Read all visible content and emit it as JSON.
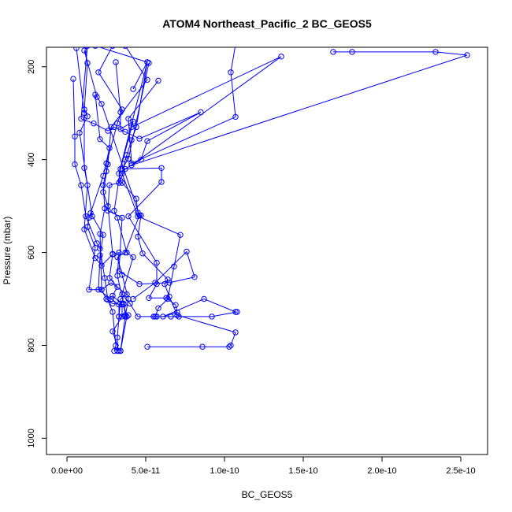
{
  "chart_data": {
    "type": "line",
    "title": "ATOM4 Northeast_Pacific_2 BC_GEOS5",
    "xlabel": "BC_GEOS5",
    "ylabel": "Pressure (mbar)",
    "xlim": [
      -1.3e-11,
      2.67e-10
    ],
    "ylim": [
      1035,
      158
    ],
    "y_reversed": true,
    "grid": false,
    "legend": "none",
    "series_color": "#0000ff",
    "markers": "open-circle",
    "x_ticks": [
      0,
      5e-11,
      1e-10,
      1.5e-10,
      2e-10,
      2.5e-10
    ],
    "x_tick_labels": [
      "0.0e+00",
      "5.0e-11",
      "1.0e-10",
      "1.5e-10",
      "2.0e-10",
      "2.5e-10"
    ],
    "y_ticks": [
      200,
      400,
      600,
      800,
      1000
    ],
    "y_tick_labels": [
      "200",
      "400",
      "600",
      "800",
      "1000"
    ],
    "series": [
      {
        "points": [
          [
            1.1e-11,
            152
          ],
          [
            1.3e-11,
            192
          ],
          [
            1.1e-11,
            292
          ],
          [
            1.3e-11,
            307
          ],
          [
            8e-12,
            342
          ],
          [
            1.6e-11,
            522
          ],
          [
            1.5e-11,
            515
          ],
          [
            2.3e-11,
            562
          ],
          [
            2.1e-11,
            606
          ],
          [
            2e-11,
            680
          ],
          [
            2.8e-11,
            700
          ],
          [
            3.3e-11,
            712
          ],
          [
            3.3e-11,
            738
          ],
          [
            3.2e-11,
            783
          ],
          [
            3.2e-11,
            812
          ]
        ]
      },
      {
        "points": [
          [
            4e-12,
            226
          ],
          [
            5e-12,
            350
          ],
          [
            5e-12,
            410
          ],
          [
            9e-12,
            455
          ],
          [
            1.2e-11,
            522
          ],
          [
            1.9e-11,
            580
          ],
          [
            2.1e-11,
            592
          ],
          [
            2.4e-11,
            655
          ],
          [
            2.6e-11,
            702
          ],
          [
            2.9e-11,
            728
          ],
          [
            3.1e-11,
            800
          ],
          [
            3e-11,
            812
          ]
        ]
      },
      {
        "points": [
          [
            2.9e-11,
            155
          ],
          [
            2e-11,
            212
          ],
          [
            3.5e-11,
            292
          ],
          [
            3.2e-11,
            322
          ],
          [
            2.5e-11,
            408
          ],
          [
            2.5e-11,
            425
          ],
          [
            2.3e-11,
            455
          ],
          [
            2.4e-11,
            505
          ],
          [
            2.1e-11,
            560
          ],
          [
            2.2e-11,
            680
          ],
          [
            2.5e-11,
            700
          ],
          [
            2.9e-11,
            710
          ],
          [
            3.6e-11,
            712
          ],
          [
            3.8e-11,
            738
          ],
          [
            3.4e-11,
            812
          ]
        ]
      },
      {
        "points": [
          [
            3.1e-11,
            190
          ],
          [
            3.4e-11,
            298
          ],
          [
            3.4e-11,
            334
          ],
          [
            4.2e-11,
            318
          ],
          [
            3.4e-11,
            420
          ],
          [
            3e-11,
            510
          ],
          [
            3.2e-11,
            525
          ],
          [
            3.8e-11,
            600
          ],
          [
            4.2e-11,
            610
          ],
          [
            3.5e-11,
            690
          ],
          [
            4e-11,
            710
          ],
          [
            4.5e-11,
            738
          ],
          [
            5.5e-11,
            738
          ],
          [
            5.7e-11,
            738
          ],
          [
            6.6e-11,
            738
          ],
          [
            7.1e-11,
            738
          ],
          [
            9.2e-11,
            738
          ],
          [
            1.08e-10,
            728
          ]
        ]
      },
      {
        "points": [
          [
            4.2e-11,
            248
          ],
          [
            5.1e-11,
            190
          ],
          [
            3.3e-11,
            430
          ],
          [
            3.4e-11,
            445
          ],
          [
            3.5e-11,
            450
          ],
          [
            4.4e-11,
            484
          ],
          [
            4.5e-11,
            514
          ],
          [
            4.7e-11,
            520
          ],
          [
            4.5e-11,
            566
          ],
          [
            4.8e-11,
            602
          ],
          [
            6.4e-11,
            658
          ],
          [
            6.2e-11,
            668
          ],
          [
            6.5e-11,
            695
          ],
          [
            7e-11,
            735
          ],
          [
            1.07e-10,
            772
          ],
          [
            1.04e-10,
            800
          ],
          [
            1.03e-10,
            803
          ],
          [
            8.6e-11,
            803
          ],
          [
            5.1e-11,
            803
          ]
        ]
      },
      {
        "points": [
          [
            5.2e-11,
            192
          ],
          [
            3.9e-11,
            398
          ],
          [
            3.5e-11,
            420
          ],
          [
            6e-11,
            418
          ],
          [
            6e-11,
            448
          ],
          [
            3.9e-11,
            522
          ],
          [
            5.7e-11,
            622
          ],
          [
            5.7e-11,
            668
          ],
          [
            5.2e-11,
            698
          ],
          [
            6.3e-11,
            698
          ],
          [
            6.9e-11,
            713
          ],
          [
            7e-11,
            729
          ],
          [
            6.1e-11,
            738
          ],
          [
            8.7e-11,
            700
          ],
          [
            1.07e-10,
            728
          ]
        ]
      },
      {
        "points": [
          [
            1.8e-11,
            155
          ],
          [
            5.1e-11,
            190
          ],
          [
            4.4e-11,
            330
          ],
          [
            4.1e-11,
            358
          ],
          [
            3.8e-11,
            390
          ],
          [
            3.7e-11,
            400
          ],
          [
            3.5e-11,
            430
          ],
          [
            4.5e-11,
            522
          ],
          [
            7.2e-11,
            562
          ],
          [
            6.8e-11,
            630
          ],
          [
            6.4e-11,
            700
          ],
          [
            5.8e-11,
            720
          ],
          [
            5.6e-11,
            738
          ]
        ]
      },
      {
        "points": [
          [
            1.3e-11,
            155
          ],
          [
            9e-12,
            312
          ],
          [
            1.7e-11,
            322
          ],
          [
            2.6e-11,
            338
          ],
          [
            3e-11,
            330
          ],
          [
            3.7e-11,
            340
          ],
          [
            4.6e-11,
            355
          ],
          [
            8.5e-11,
            298
          ],
          [
            5.1e-11,
            360
          ],
          [
            4.7e-11,
            400
          ],
          [
            3.7e-11,
            420
          ],
          [
            3.3e-11,
            450
          ],
          [
            2.7e-11,
            455
          ],
          [
            2.6e-11,
            510
          ],
          [
            3.5e-11,
            525
          ],
          [
            3.3e-11,
            640
          ],
          [
            4.6e-11,
            668
          ],
          [
            6.5e-11,
            665
          ],
          [
            8.1e-11,
            653
          ],
          [
            7.6e-11,
            598
          ],
          [
            5.6e-11,
            665
          ],
          [
            4.2e-11,
            700
          ]
        ]
      },
      {
        "points": [
          [
            5.8e-11,
            230
          ],
          [
            3.9e-11,
            312
          ],
          [
            4.1e-11,
            408
          ],
          [
            1.07e-10,
            308
          ],
          [
            1.04e-10,
            212
          ],
          [
            1.07e-10,
            152
          ]
        ]
      },
      {
        "points": [
          [
            1.8e-11,
            260
          ],
          [
            2.1e-11,
            356
          ],
          [
            2.7e-11,
            375
          ],
          [
            2.3e-11,
            435
          ],
          [
            1.4e-11,
            525
          ],
          [
            1.3e-11,
            545
          ],
          [
            1.8e-11,
            590
          ],
          [
            1.4e-11,
            680
          ],
          [
            2.2e-11,
            680
          ],
          [
            2.8e-11,
            665
          ],
          [
            3.8e-11,
            690
          ],
          [
            3.4e-11,
            700
          ],
          [
            3.3e-11,
            738
          ]
        ]
      },
      {
        "points": [
          [
            1.1e-11,
            165
          ],
          [
            1.9e-11,
            265
          ],
          [
            2.2e-11,
            280
          ],
          [
            4.6e-11,
            520
          ],
          [
            3.7e-11,
            600
          ],
          [
            3.2e-11,
            610
          ],
          [
            3.5e-11,
            648
          ],
          [
            3.9e-11,
            700
          ],
          [
            3.7e-11,
            738
          ],
          [
            3.4e-11,
            812
          ]
        ]
      },
      {
        "points": [
          [
            3.7e-11,
            155
          ],
          [
            5.1e-11,
            228
          ],
          [
            2.8e-11,
            330
          ],
          [
            2.6e-11,
            410
          ],
          [
            2.3e-11,
            470
          ],
          [
            2.6e-11,
            500
          ],
          [
            2.9e-11,
            603
          ],
          [
            2.7e-11,
            655
          ],
          [
            3.2e-11,
            674
          ],
          [
            2.9e-11,
            693
          ],
          [
            3.5e-11,
            712
          ],
          [
            3.5e-11,
            738
          ],
          [
            2.9e-11,
            770
          ],
          [
            3.3e-11,
            812
          ]
        ]
      },
      {
        "points": [
          [
            6e-12,
            160
          ],
          [
            1.1e-11,
            300
          ],
          [
            1.1e-11,
            418
          ],
          [
            1.3e-11,
            455
          ],
          [
            1.1e-11,
            550
          ],
          [
            1.8e-11,
            612
          ],
          [
            2.2e-11,
            628
          ],
          [
            2.9e-11,
            604
          ],
          [
            3.3e-11,
            600
          ],
          [
            3.2e-11,
            650
          ],
          [
            3.6e-11,
            710
          ],
          [
            3.7e-11,
            735
          ],
          [
            3.9e-11,
            735
          ]
        ]
      },
      {
        "points": [
          [
            4.1e-11,
            330
          ],
          [
            1.36e-10,
            178
          ],
          [
            4.1e-11,
            412
          ],
          [
            2.54e-10,
            175
          ],
          [
            2.34e-10,
            168
          ],
          [
            1.81e-10,
            168
          ],
          [
            1.69e-10,
            168
          ]
        ]
      }
    ]
  }
}
